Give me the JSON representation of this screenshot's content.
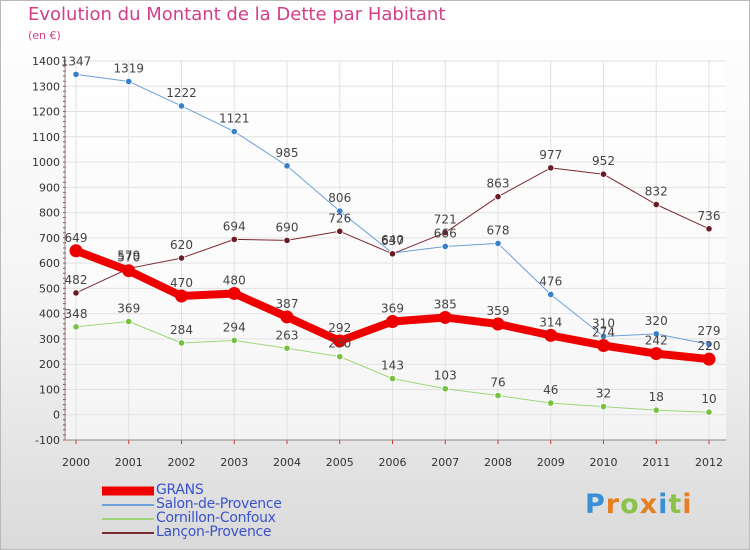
{
  "title": "Evolution du Montant de la Dette par Habitant",
  "unit": "(en €)",
  "logo": {
    "letters": [
      "P",
      "r",
      "o",
      "x",
      "i",
      "t",
      "i"
    ],
    "colors": [
      "#3a8fd6",
      "#e67e22",
      "#8bc34a",
      "#e67e22",
      "#3a8fd6",
      "#8bc34a",
      "#e67e22"
    ]
  },
  "chart_data": {
    "type": "line",
    "x": [
      "2000",
      "2001",
      "2002",
      "2003",
      "2004",
      "2005",
      "2006",
      "2007",
      "2008",
      "2009",
      "2010",
      "2011",
      "2012"
    ],
    "ylim": [
      -100,
      1400
    ],
    "yticks": [
      "-100",
      "0",
      "100",
      "200",
      "300",
      "400",
      "500",
      "600",
      "700",
      "800",
      "900",
      "1000",
      "1100",
      "1200",
      "1300",
      "1400"
    ],
    "grid": true,
    "legend_position": "bottom-left",
    "series": [
      {
        "name": "GRANS",
        "color": "#ee0000",
        "point_color": "#ee0000",
        "width": 8,
        "values": [
          649,
          570,
          470,
          480,
          387,
          292,
          369,
          385,
          359,
          314,
          274,
          242,
          220
        ],
        "labels": [
          "649",
          "570",
          "470",
          "480",
          "387",
          "292",
          "369",
          "385",
          "359",
          "314",
          "274",
          "242",
          "220"
        ]
      },
      {
        "name": "Salon-de-Provence",
        "color": "#6d9fd8",
        "point_color": "#3a80c8",
        "width": 1,
        "values": [
          1347,
          1319,
          1222,
          1121,
          985,
          806,
          640,
          666,
          678,
          476,
          310,
          320,
          279
        ],
        "labels": [
          "1347",
          "1319",
          "1222",
          "1121",
          "985",
          "806",
          "640",
          "666",
          "678",
          "476",
          "310",
          "320",
          "279"
        ]
      },
      {
        "name": "Cornillon-Confoux",
        "color": "#a0d67a",
        "point_color": "#78c040",
        "width": 1,
        "values": [
          348,
          369,
          284,
          294,
          263,
          230,
          143,
          103,
          76,
          46,
          32,
          18,
          10
        ],
        "labels": [
          "348",
          "369",
          "284",
          "294",
          "263",
          "230",
          "143",
          "103",
          "76",
          "46",
          "32",
          "18",
          "10"
        ]
      },
      {
        "name": "Lançon-Provence",
        "color": "#7a2a30",
        "point_color": "#6a1c24",
        "width": 1,
        "values": [
          482,
          579,
          620,
          694,
          690,
          726,
          637,
          721,
          863,
          977,
          952,
          832,
          736
        ],
        "labels": [
          "482",
          "579",
          "620",
          "694",
          "690",
          "726",
          "637",
          "721",
          "863",
          "977",
          "952",
          "832",
          "736"
        ]
      }
    ]
  }
}
